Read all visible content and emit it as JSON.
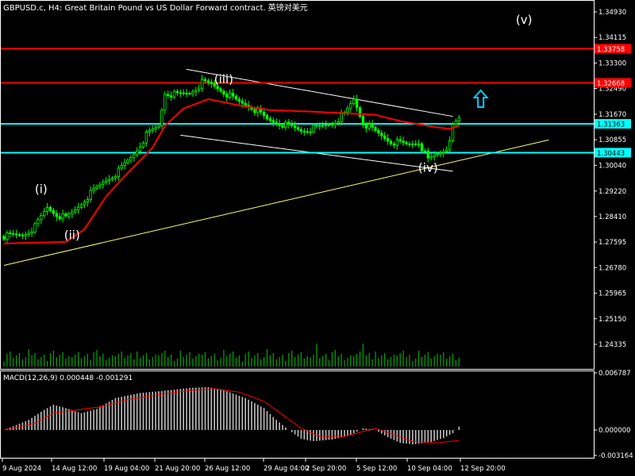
{
  "title": "GBPUSD.c, H4:  Great Britain Pound vs US Dollar Forward contract. 英镑对美元",
  "chart_data": {
    "type": "candlestick",
    "colors": {
      "background": "#000000",
      "bull": "#00ff00",
      "bear": "#00ff00",
      "axis": "#ffffff",
      "grid": "#1c1c1c",
      "ma": "#ff0000",
      "resistance": "#ff0000",
      "support": "#00ffff",
      "trendline": "#ffff66",
      "channel": "#ffffff",
      "volume": "#00aa00",
      "macd_hist": "#c0c0c0",
      "macd_signal": "#ff0000",
      "arrow": "#00ccff"
    },
    "price_axis": {
      "ticks": [
        1.3493,
        1.34115,
        1.333,
        1.3249,
        1.3167,
        1.30855,
        1.3004,
        1.2922,
        1.2841,
        1.27595,
        1.2678,
        1.25965,
        1.2515,
        1.24335
      ],
      "tick_labels": [
        "1.34930",
        "1.34115",
        "1.33300",
        "1.32490",
        "1.31670",
        "1.30855",
        "1.30040",
        "1.29220",
        "1.28410",
        "1.27595",
        "1.26780",
        "1.25965",
        "1.25150",
        "1.24335"
      ]
    },
    "levels": [
      {
        "kind": "resistance",
        "price": 1.33758,
        "label": "1.33758"
      },
      {
        "kind": "resistance",
        "price": 1.32668,
        "label": "1.32668"
      },
      {
        "kind": "support",
        "price": 1.31363,
        "label": "1.31363"
      },
      {
        "kind": "support",
        "price": 1.30443,
        "label": "1.30443"
      }
    ],
    "time_labels": [
      "9 Aug 2024",
      "14 Aug 12:00",
      "19 Aug 04:00",
      "21 Aug 20:00",
      "26 Aug 12:00",
      "29 Aug 04:00",
      "2 Sep 20:00",
      "5 Sep 12:00",
      "10 Sep 04:00",
      "12 Sep 20:00"
    ],
    "close_path": [
      [
        0,
        1.2778
      ],
      [
        6,
        1.2782
      ],
      [
        10,
        1.2808
      ],
      [
        14,
        1.287
      ],
      [
        17,
        1.2848
      ],
      [
        20,
        1.2835
      ],
      [
        23,
        1.2862
      ],
      [
        27,
        1.2905
      ],
      [
        32,
        1.295
      ],
      [
        37,
        1.2985
      ],
      [
        42,
        1.304
      ],
      [
        46,
        1.31
      ],
      [
        50,
        1.313
      ],
      [
        52,
        1.3235
      ],
      [
        56,
        1.3228
      ],
      [
        60,
        1.3235
      ],
      [
        64,
        1.3268
      ],
      [
        67,
        1.3262
      ],
      [
        70,
        1.3245
      ],
      [
        75,
        1.321
      ],
      [
        80,
        1.319
      ],
      [
        85,
        1.315
      ],
      [
        90,
        1.3135
      ],
      [
        96,
        1.3115
      ],
      [
        102,
        1.3125
      ],
      [
        106,
        1.314
      ],
      [
        110,
        1.3165
      ],
      [
        113,
        1.3215
      ],
      [
        116,
        1.314
      ],
      [
        120,
        1.311
      ],
      [
        125,
        1.308
      ],
      [
        130,
        1.307
      ],
      [
        134,
        1.308
      ],
      [
        137,
        1.302
      ],
      [
        140,
        1.304
      ],
      [
        143,
        1.306
      ],
      [
        145,
        1.3125
      ],
      [
        147,
        1.315
      ]
    ],
    "ma_path": [
      [
        0,
        1.2755
      ],
      [
        20,
        1.276
      ],
      [
        26,
        1.28
      ],
      [
        33,
        1.2905
      ],
      [
        40,
        1.298
      ],
      [
        48,
        1.306
      ],
      [
        52,
        1.313
      ],
      [
        58,
        1.3185
      ],
      [
        66,
        1.3215
      ],
      [
        76,
        1.3195
      ],
      [
        86,
        1.318
      ],
      [
        100,
        1.3175
      ],
      [
        110,
        1.317
      ],
      [
        120,
        1.3165
      ],
      [
        128,
        1.3145
      ],
      [
        134,
        1.3135
      ],
      [
        140,
        1.3125
      ],
      [
        144,
        1.312
      ],
      [
        147,
        1.313
      ]
    ],
    "bar_count": 148,
    "wave_labels": [
      {
        "text": "(i)",
        "bar": 12,
        "price": 1.2915
      },
      {
        "text": "(ii)",
        "bar": 22,
        "price": 1.2768
      },
      {
        "text": "(iii)",
        "bar": 71,
        "price": 1.3265
      },
      {
        "text": "(iv)",
        "bar": 137,
        "price": 1.2983
      },
      {
        "text": "(v)",
        "bar": 168,
        "price": 1.3455
      }
    ],
    "trendline": {
      "from": [
        0,
        1.2685
      ],
      "to": [
        176,
        1.3085
      ]
    },
    "channel_upper": {
      "from": [
        59,
        1.331
      ],
      "to": [
        145,
        1.316
      ]
    },
    "channel_lower": {
      "from": [
        57,
        1.31
      ],
      "to": [
        145,
        1.2985
      ]
    },
    "arrow": {
      "bar": 154,
      "price": 1.3215,
      "direction": "up"
    },
    "macd": {
      "label": "MACD(12,26,9) 0.000448 -0.001291",
      "ticks": [
        0.006787,
        0.0,
        -0.003164
      ],
      "tick_labels": [
        "0.006787",
        "0.000000",
        "-0.003164"
      ],
      "hist_path": [
        [
          0,
          0.0
        ],
        [
          8,
          0.0012
        ],
        [
          13,
          0.0024
        ],
        [
          16,
          0.003
        ],
        [
          20,
          0.0026
        ],
        [
          25,
          0.002
        ],
        [
          30,
          0.0025
        ],
        [
          36,
          0.0038
        ],
        [
          44,
          0.0044
        ],
        [
          50,
          0.0046
        ],
        [
          60,
          0.005
        ],
        [
          66,
          0.0051
        ],
        [
          72,
          0.0046
        ],
        [
          78,
          0.0038
        ],
        [
          84,
          0.0026
        ],
        [
          88,
          0.0012
        ],
        [
          92,
          0.0
        ],
        [
          96,
          -0.0011
        ],
        [
          100,
          -0.0014
        ],
        [
          106,
          -0.0012
        ],
        [
          112,
          -0.0006
        ],
        [
          116,
          0.0002
        ],
        [
          120,
          0.0
        ],
        [
          124,
          -0.0009
        ],
        [
          128,
          -0.0016
        ],
        [
          132,
          -0.0018
        ],
        [
          138,
          -0.0015
        ],
        [
          142,
          -0.001
        ],
        [
          145,
          -0.0004
        ],
        [
          147,
          0.0004
        ]
      ],
      "signal_path": [
        [
          0,
          0.0
        ],
        [
          10,
          0.0008
        ],
        [
          16,
          0.002
        ],
        [
          24,
          0.0024
        ],
        [
          32,
          0.0028
        ],
        [
          40,
          0.0036
        ],
        [
          50,
          0.0042
        ],
        [
          60,
          0.0047
        ],
        [
          68,
          0.0049
        ],
        [
          76,
          0.0045
        ],
        [
          84,
          0.0034
        ],
        [
          90,
          0.0018
        ],
        [
          96,
          0.0002
        ],
        [
          102,
          -0.0008
        ],
        [
          110,
          -0.0008
        ],
        [
          116,
          -0.0002
        ],
        [
          120,
          0.0002
        ],
        [
          126,
          -0.0006
        ],
        [
          132,
          -0.0014
        ],
        [
          140,
          -0.0016
        ],
        [
          147,
          -0.0013
        ]
      ]
    }
  }
}
